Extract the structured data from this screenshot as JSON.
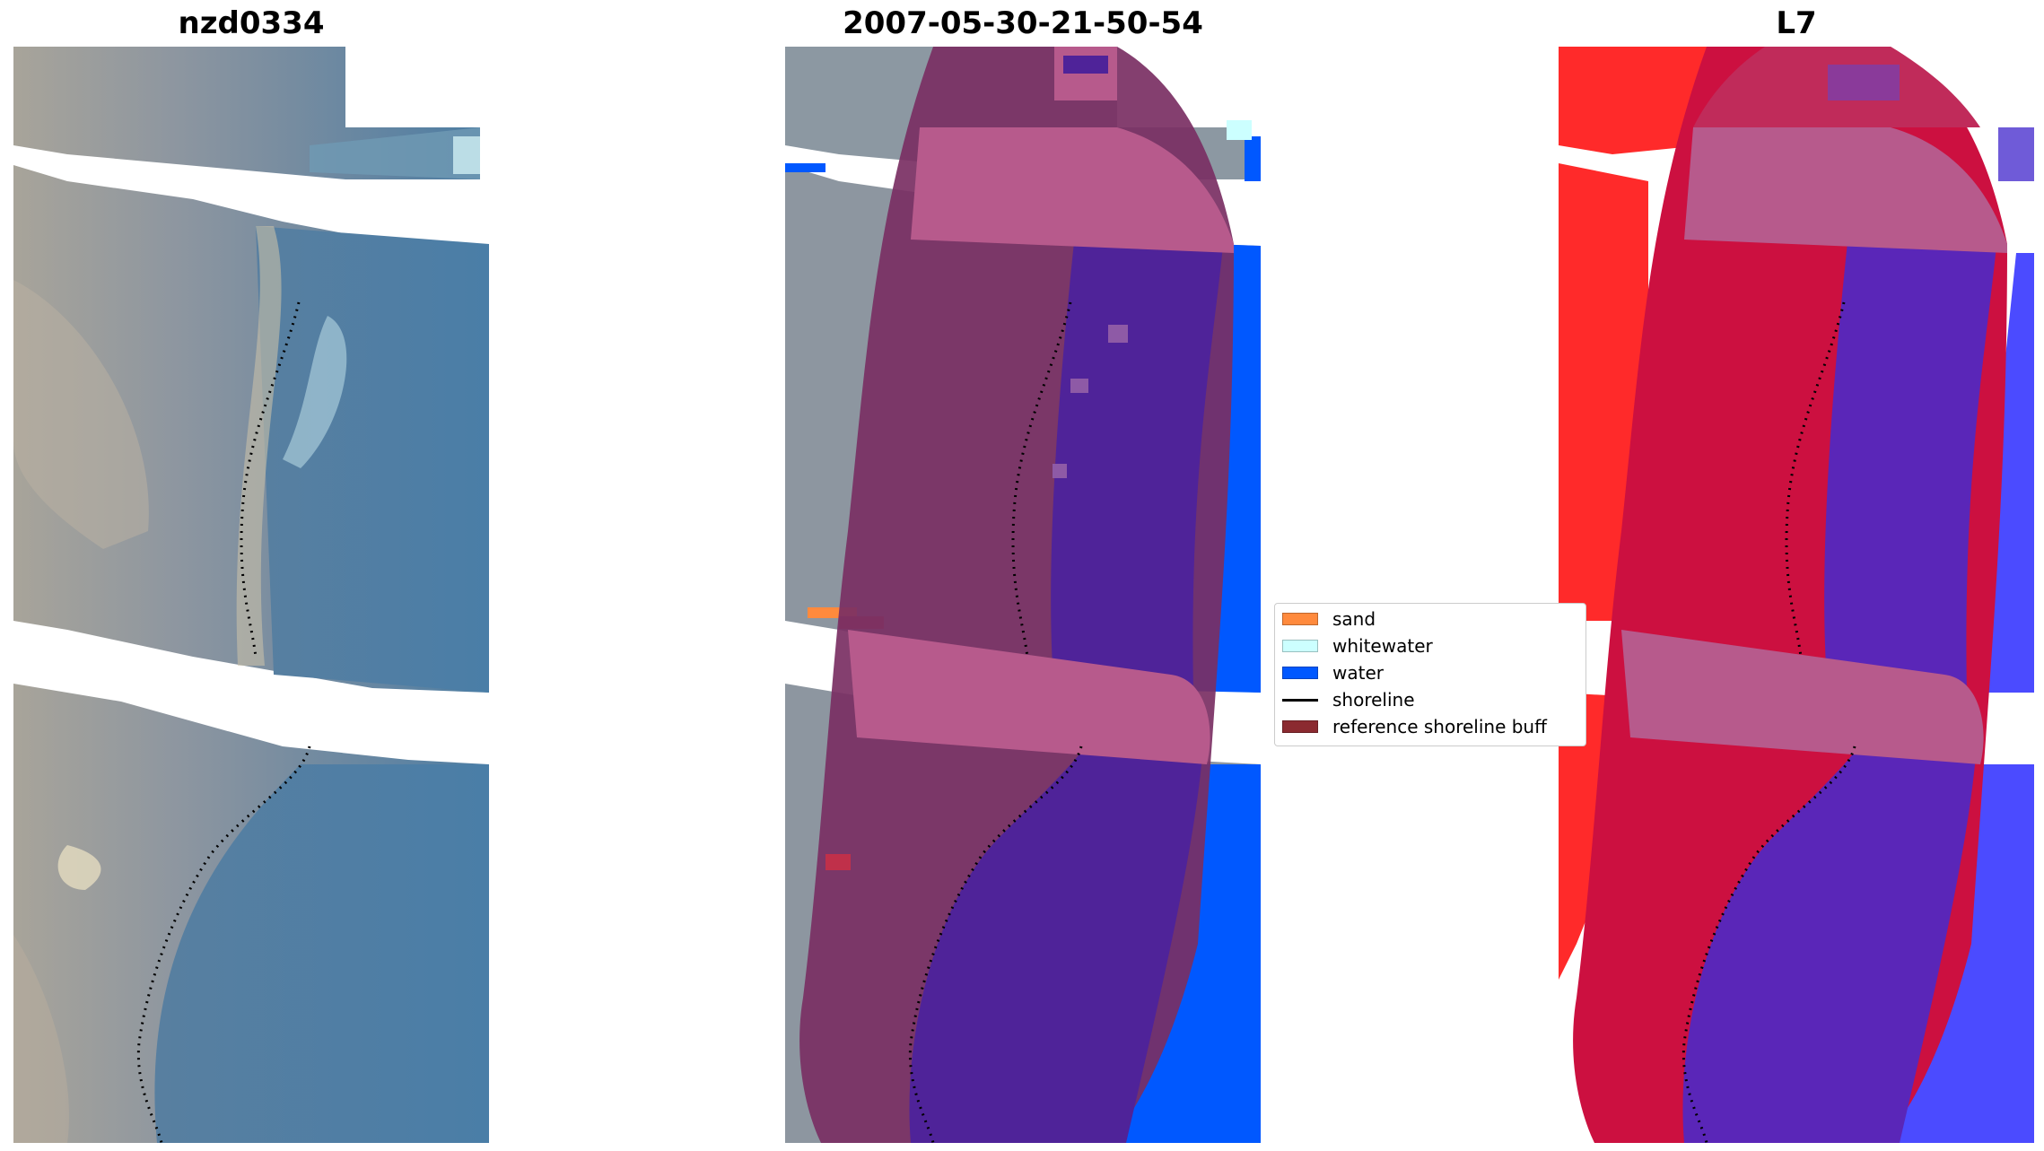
{
  "panels": [
    {
      "title": "nzd0334"
    },
    {
      "title": "2007-05-30-21-50-54"
    },
    {
      "title": "L7"
    }
  ],
  "legend": {
    "items": [
      {
        "label": "sand",
        "color": "#ff8a3d",
        "kind": "patch"
      },
      {
        "label": "whitewater",
        "color": "#ccffff",
        "kind": "patch"
      },
      {
        "label": "water",
        "color": "#0058ff",
        "kind": "patch"
      },
      {
        "label": "shoreline",
        "color": "#000000",
        "kind": "line"
      },
      {
        "label": "reference shoreline buff",
        "color": "#8b2a30",
        "kind": "patch"
      }
    ]
  },
  "colors": {
    "water": "#0058ff",
    "sand": "#ff8a3d",
    "whitewater": "#ccffff",
    "buffer_overlay": "#b75a8c",
    "land_overlay": "#7a2f63",
    "water_overlay": "#4f2399",
    "land_class": "#cc1040",
    "water_class": "#4a2ad0",
    "land_class_edge": "#ff2a2a",
    "water_class_edge": "#4b4bff"
  }
}
